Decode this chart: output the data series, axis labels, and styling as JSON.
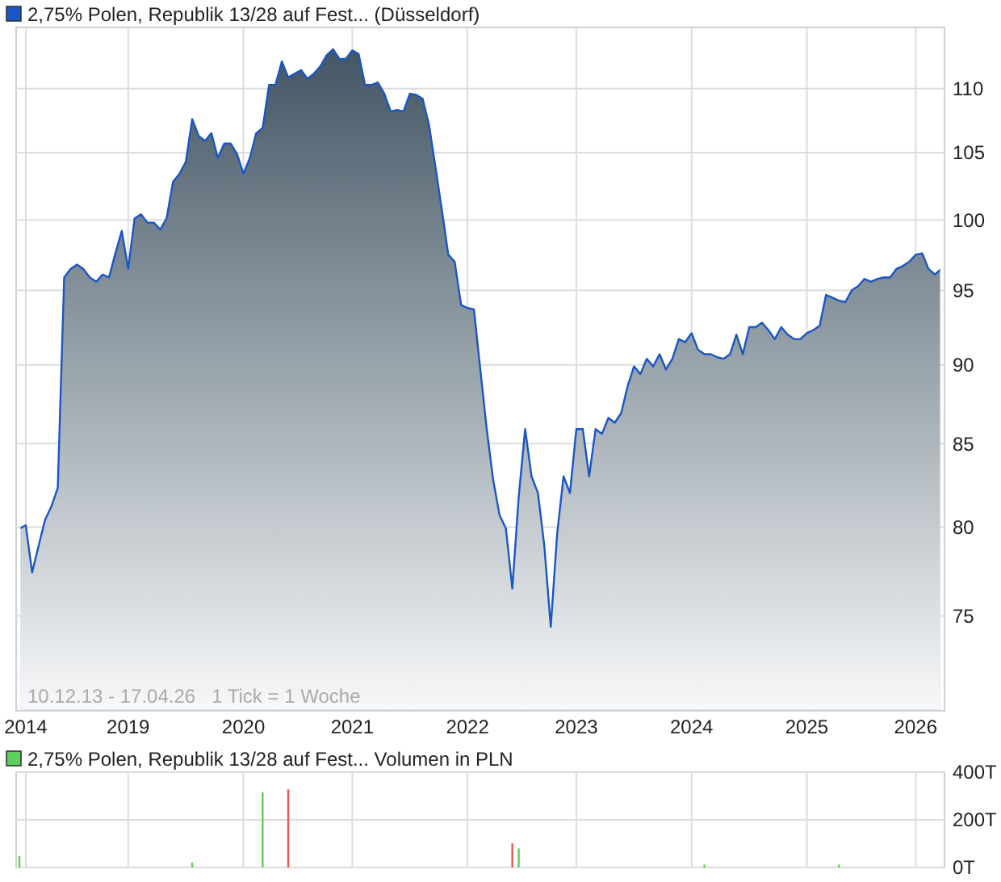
{
  "chart_data": [
    {
      "type": "area",
      "categories": [
        null,
        "2014",
        null,
        null,
        null,
        null,
        null,
        null,
        null,
        null,
        null,
        null,
        null,
        null,
        null,
        null,
        null,
        "2019",
        null,
        null,
        null,
        null,
        null,
        null,
        null,
        null,
        null,
        null,
        null,
        null,
        null,
        null,
        null,
        null,
        null,
        "2020",
        null,
        null,
        null,
        null,
        null,
        null,
        null,
        null,
        null,
        null,
        null,
        null,
        null,
        null,
        null,
        null,
        "2021",
        null,
        null,
        null,
        null,
        null,
        null,
        null,
        null,
        null,
        null,
        null,
        null,
        null,
        null,
        null,
        null,
        null,
        "2022",
        null,
        null,
        null,
        null,
        null,
        null,
        null,
        null,
        null,
        null,
        null,
        null,
        null,
        null,
        null,
        null,
        "2023",
        null,
        null,
        null,
        null,
        null,
        null,
        null,
        null,
        null,
        null,
        null,
        null,
        null,
        null,
        null,
        null,
        null,
        "2024",
        null,
        null,
        null,
        null,
        null,
        null,
        null,
        null,
        null,
        null,
        null,
        null,
        null,
        null,
        null,
        null,
        null,
        "2025",
        null,
        null,
        null,
        null,
        null,
        null,
        null,
        null,
        null,
        null,
        null,
        null,
        null,
        null,
        null,
        null,
        "2026",
        null,
        null,
        null,
        null
      ],
      "series": [
        {
          "name": "2,75% Polen, Republik 13/28 auf Fest... (Düsseldorf)",
          "color": "#1a56c4",
          "values": [
            79.9,
            80.1,
            77.4,
            78.9,
            80.4,
            81.2,
            82.3,
            95.9,
            96.5,
            96.8,
            96.5,
            95.9,
            95.6,
            96.1,
            95.9,
            97.6,
            99.2,
            96.5,
            100.1,
            100.4,
            99.8,
            99.8,
            99.3,
            100.1,
            102.8,
            103.4,
            104.3,
            107.6,
            106.3,
            105.9,
            106.5,
            104.6,
            105.7,
            105.7,
            104.9,
            103.4,
            104.6,
            106.5,
            106.9,
            110.3,
            110.3,
            112.2,
            110.9,
            111.2,
            111.5,
            110.8,
            111.2,
            111.8,
            112.7,
            113.2,
            112.4,
            112.4,
            113.1,
            112.8,
            110.3,
            110.3,
            110.5,
            109.6,
            108.2,
            108.3,
            108.2,
            109.6,
            109.5,
            109.2,
            107.1,
            103.9,
            100.7,
            97.5,
            97.0,
            94.0,
            93.8,
            93.7,
            89.7,
            85.9,
            82.8,
            80.7,
            79.9,
            76.5,
            81.8,
            85.9,
            83.0,
            82.0,
            78.9,
            74.4,
            79.6,
            83.0,
            82.0,
            85.9,
            85.9,
            83.0,
            85.9,
            85.6,
            86.6,
            86.3,
            86.9,
            88.6,
            89.9,
            89.4,
            90.4,
            89.9,
            90.7,
            89.7,
            90.4,
            91.7,
            91.5,
            92.1,
            91.0,
            90.7,
            90.7,
            90.5,
            90.4,
            90.7,
            92.0,
            90.7,
            92.5,
            92.5,
            92.8,
            92.3,
            91.7,
            92.5,
            92.0,
            91.7,
            91.7,
            92.1,
            92.3,
            92.6,
            94.7,
            94.5,
            94.3,
            94.2,
            95.0,
            95.3,
            95.8,
            95.6,
            95.8,
            95.9,
            95.9,
            96.5,
            96.7,
            97.0,
            97.5,
            97.6,
            96.5,
            96.1,
            96.5
          ]
        }
      ],
      "log": true,
      "ylim": [
        70,
        115
      ],
      "yticks": [
        75,
        80,
        85,
        90,
        95,
        100,
        105,
        110
      ],
      "grid": true,
      "legend": "top left",
      "annotations": [
        "10.12.13 - 17.04.26   1 Tick = 1 Woche"
      ]
    },
    {
      "type": "bar",
      "categories": [
        null,
        "2014",
        null,
        null,
        null,
        null,
        null,
        null,
        null,
        null,
        null,
        null,
        null,
        null,
        null,
        null,
        null,
        "2019",
        null,
        null,
        null,
        null,
        null,
        null,
        null,
        null,
        null,
        null,
        null,
        null,
        null,
        null,
        null,
        null,
        null,
        "2020",
        null,
        null,
        null,
        null,
        null,
        null,
        null,
        null,
        null,
        null,
        null,
        null,
        null,
        null,
        null,
        null,
        "2021",
        null,
        null,
        null,
        null,
        null,
        null,
        null,
        null,
        null,
        null,
        null,
        null,
        null,
        null,
        null,
        null,
        null,
        "2022",
        null,
        null,
        null,
        null,
        null,
        null,
        null,
        null,
        null,
        null,
        null,
        null,
        null,
        null,
        null,
        null,
        "2023",
        null,
        null,
        null,
        null,
        null,
        null,
        null,
        null,
        null,
        null,
        null,
        null,
        null,
        null,
        null,
        null,
        null,
        "2024",
        null,
        null,
        null,
        null,
        null,
        null,
        null,
        null,
        null,
        null,
        null,
        null,
        null,
        null,
        null,
        null,
        null,
        "2025",
        null,
        null,
        null,
        null,
        null,
        null,
        null,
        null,
        null,
        null,
        null,
        null,
        null,
        null,
        null,
        null,
        "2026",
        null,
        null,
        null,
        null
      ],
      "series": [
        {
          "name": "2,75% Polen, Republik 13/28 auf Fest... Volumen in PLN",
          "color": "#5ccf5c",
          "values": [
            48,
            null,
            null,
            null,
            null,
            null,
            null,
            null,
            null,
            null,
            null,
            null,
            null,
            null,
            null,
            null,
            null,
            null,
            null,
            null,
            null,
            null,
            null,
            null,
            null,
            null,
            null,
            21,
            null,
            null,
            null,
            null,
            null,
            null,
            null,
            null,
            null,
            null,
            315,
            null,
            null,
            null,
            null,
            null,
            null,
            null,
            null,
            null,
            null,
            null,
            null,
            null,
            null,
            null,
            null,
            null,
            null,
            null,
            null,
            null,
            null,
            null,
            null,
            null,
            null,
            null,
            null,
            null,
            null,
            null,
            null,
            null,
            null,
            null,
            null,
            null,
            null,
            null,
            80,
            null,
            null,
            null,
            null,
            null,
            null,
            null,
            null,
            null,
            null,
            null,
            null,
            null,
            null,
            null,
            null,
            null,
            null,
            null,
            null,
            null,
            null,
            null,
            null,
            null,
            null,
            null,
            null,
            12,
            null,
            null,
            null,
            null,
            null,
            null,
            null,
            null,
            null,
            null,
            null,
            null,
            null,
            null,
            null,
            null,
            null,
            null,
            null,
            null,
            12,
            null,
            null,
            null,
            null,
            null,
            null,
            null,
            null,
            null,
            null,
            null,
            null,
            null,
            null,
            null,
            null
          ]
        },
        {
          "color": "#e05a5a",
          "values": [
            null,
            null,
            null,
            null,
            null,
            null,
            null,
            null,
            null,
            null,
            null,
            null,
            null,
            null,
            null,
            null,
            null,
            null,
            null,
            null,
            null,
            null,
            null,
            null,
            null,
            null,
            null,
            null,
            null,
            null,
            null,
            null,
            null,
            null,
            null,
            null,
            null,
            null,
            null,
            null,
            null,
            null,
            328,
            null,
            null,
            null,
            null,
            null,
            null,
            null,
            null,
            null,
            null,
            null,
            null,
            null,
            null,
            null,
            null,
            null,
            null,
            null,
            null,
            null,
            null,
            null,
            null,
            null,
            null,
            null,
            null,
            null,
            null,
            null,
            null,
            null,
            null,
            101,
            null,
            null,
            null,
            null,
            null,
            null,
            null,
            null,
            null,
            null,
            null,
            null,
            null,
            null,
            null,
            null,
            null,
            null,
            null,
            null,
            null,
            null,
            null,
            null,
            null,
            null,
            null,
            null,
            null,
            null,
            null,
            null,
            null,
            null,
            null,
            null,
            null,
            null,
            null,
            null,
            null,
            null,
            null,
            null,
            null,
            null,
            null,
            null,
            null,
            null,
            null,
            null,
            null,
            null,
            null,
            null,
            null,
            null,
            null,
            null,
            null,
            null,
            null,
            null,
            null,
            null,
            null
          ]
        }
      ],
      "ylim": [
        0,
        400
      ],
      "yticks": [
        {
          "value": 0,
          "label": "0T"
        },
        {
          "value": 200,
          "label": "200T"
        },
        {
          "value": 400,
          "label": "400T"
        }
      ],
      "grid": true,
      "legend": "top left",
      "tick_labels": "y"
    }
  ]
}
